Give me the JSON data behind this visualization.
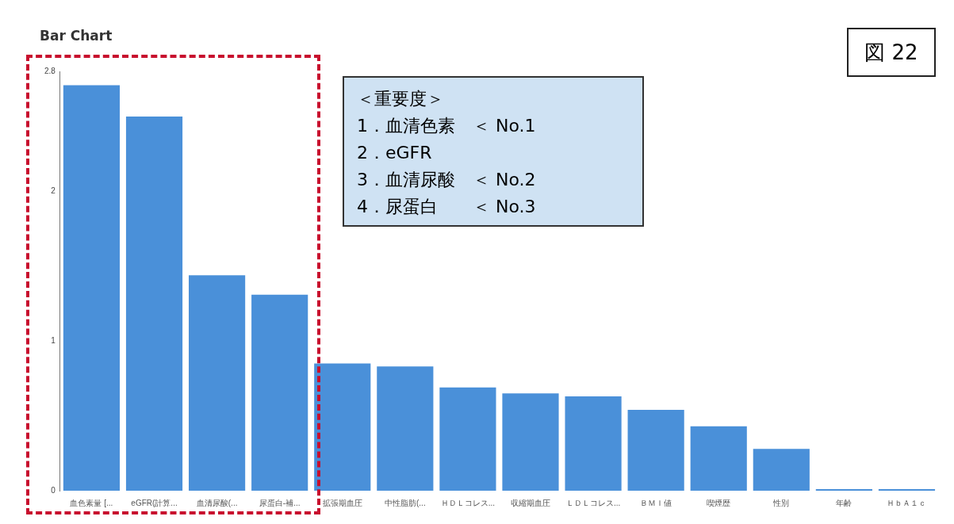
{
  "chart_data": {
    "type": "bar",
    "title": "Bar Chart",
    "categories": [
      "血色素量 [...",
      "eGFR(計算...",
      "血清尿酸(...",
      "尿蛋白-補...",
      "拡張期血圧",
      "中性脂肪(...",
      "ＨＤＬコレス...",
      "収縮期血圧",
      "ＬＤＬコレス...",
      "ＢＭＩ値",
      "喫煙歴",
      "性別",
      "年齢",
      "ＨｂＡ１ｃ"
    ],
    "values": [
      2.71,
      2.5,
      1.44,
      1.31,
      0.85,
      0.83,
      0.69,
      0.65,
      0.63,
      0.54,
      0.43,
      0.28,
      0.01,
      0.01
    ],
    "color": "#4a90d9",
    "ylim": [
      0,
      2.8
    ],
    "yticks": [
      0,
      1,
      2,
      2.8
    ],
    "grid": false,
    "annotations": [
      "＜重要度＞",
      "1．血清色素　＜ No.1",
      "2．eGFR",
      "3．血清尿酸　＜ No.2",
      "4．尿蛋白　　＜ No.3",
      "図 22"
    ]
  }
}
